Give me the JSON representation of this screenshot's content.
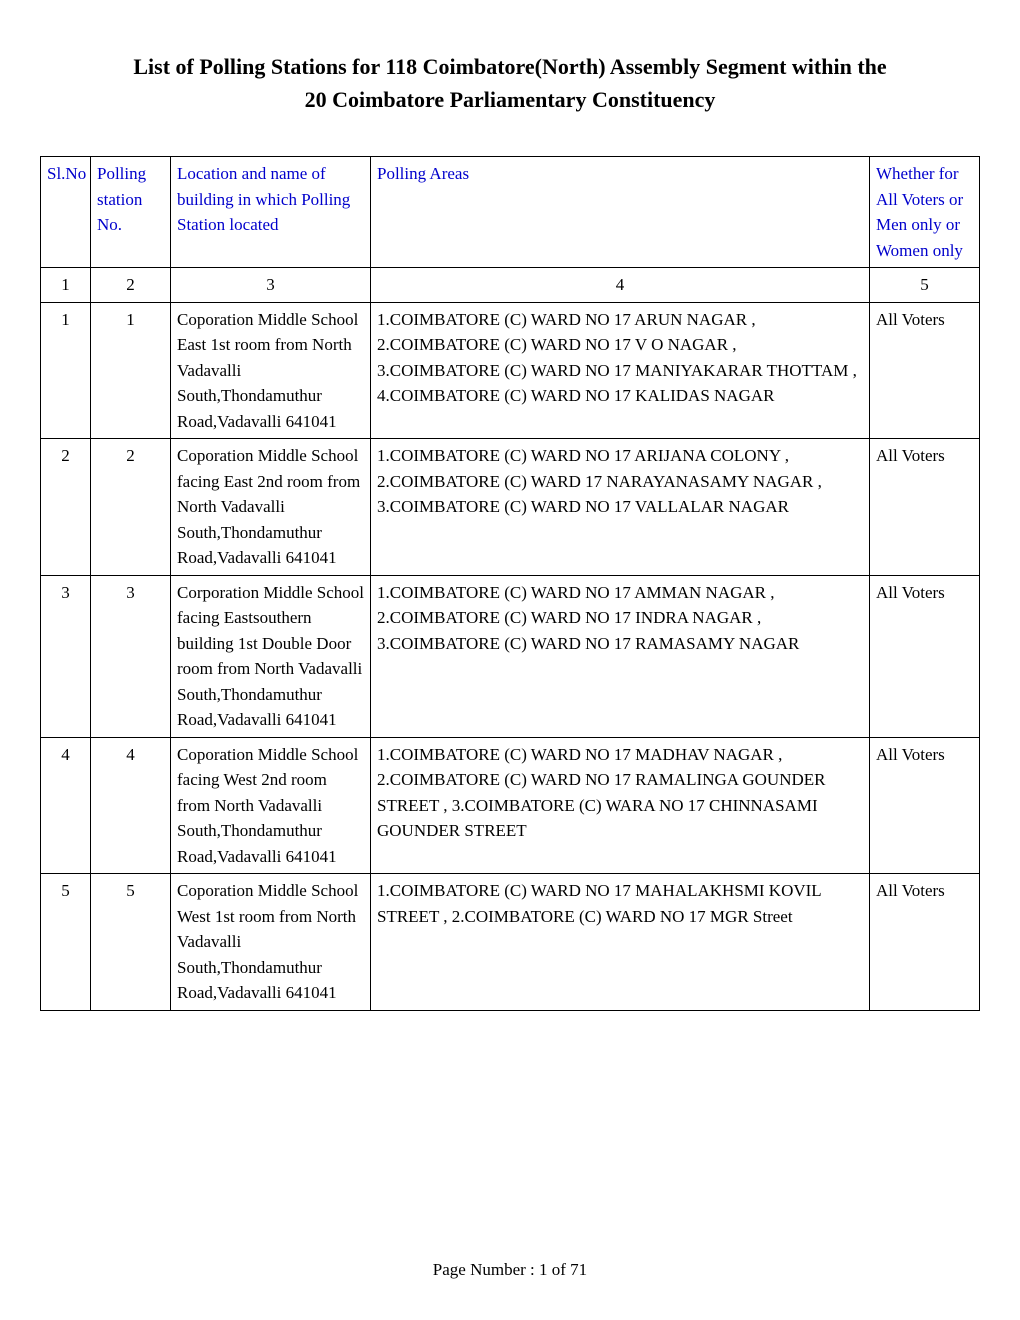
{
  "title": {
    "line1": "List of Polling Stations for  118   Coimbatore(North) Assembly Segment within the",
    "line2": "20   Coimbatore Parliamentary Constituency"
  },
  "headers": {
    "slno": "Sl.No",
    "station_no": "Polling station No.",
    "location": "Location and name of building in which  Polling Station located",
    "areas": "Polling Areas",
    "whether": "Whether for All Voters or Men only or Women only"
  },
  "column_numbers": {
    "c1": "1",
    "c2": "2",
    "c3": "3",
    "c4": "4",
    "c5": "5"
  },
  "rows": [
    {
      "slno": "1",
      "station_no": "1",
      "location": "Coporation Middle School East 1st room from North Vadavalli South,Thondamuthur Road,Vadavalli 641041",
      "areas": "1.COIMBATORE (C) WARD NO 17 ARUN NAGAR , 2.COIMBATORE (C) WARD NO 17 V O NAGAR , 3.COIMBATORE (C) WARD NO 17 MANIYAKARAR THOTTAM , 4.COIMBATORE (C) WARD NO 17 KALIDAS NAGAR",
      "whether": "All Voters"
    },
    {
      "slno": "2",
      "station_no": "2",
      "location": "Coporation Middle School facing East 2nd room from North Vadavalli South,Thondamuthur Road,Vadavalli 641041",
      "areas": "1.COIMBATORE (C) WARD NO 17 ARIJANA COLONY , 2.COIMBATORE (C) WARD 17 NARAYANASAMY NAGAR , 3.COIMBATORE (C) WARD NO 17 VALLALAR NAGAR",
      "whether": "All Voters"
    },
    {
      "slno": "3",
      "station_no": "3",
      "location": "Corporation Middle School facing Eastsouthern building 1st Double Door room from North Vadavalli South,Thondamuthur Road,Vadavalli 641041",
      "areas": "1.COIMBATORE (C) WARD NO 17 AMMAN NAGAR , 2.COIMBATORE (C) WARD NO 17 INDRA NAGAR , 3.COIMBATORE (C) WARD NO 17 RAMASAMY NAGAR",
      "whether": "All Voters"
    },
    {
      "slno": "4",
      "station_no": "4",
      "location": "Coporation Middle School facing West 2nd room from North Vadavalli South,Thondamuthur Road,Vadavalli 641041",
      "areas": "1.COIMBATORE (C) WARD NO 17 MADHAV NAGAR , 2.COIMBATORE (C) WARD NO 17 RAMALINGA GOUNDER STREET , 3.COIMBATORE (C) WARA NO 17 CHINNASAMI GOUNDER STREET",
      "whether": "All Voters"
    },
    {
      "slno": "5",
      "station_no": "5",
      "location": "Coporation Middle School West 1st room from North Vadavalli South,Thondamuthur Road,Vadavalli 641041",
      "areas": "1.COIMBATORE (C) WARD NO 17 MAHALAKHSMI KOVIL STREET , 2.COIMBATORE (C) WARD NO 17 MGR Street",
      "whether": "All Voters"
    }
  ],
  "footer": "Page Number : 1 of 71",
  "styling": {
    "header_text_color": "#0000cc",
    "border_color": "#000000",
    "background_color": "#ffffff",
    "title_fontsize": 22,
    "cell_fontsize": 17,
    "font_family": "Times New Roman"
  }
}
